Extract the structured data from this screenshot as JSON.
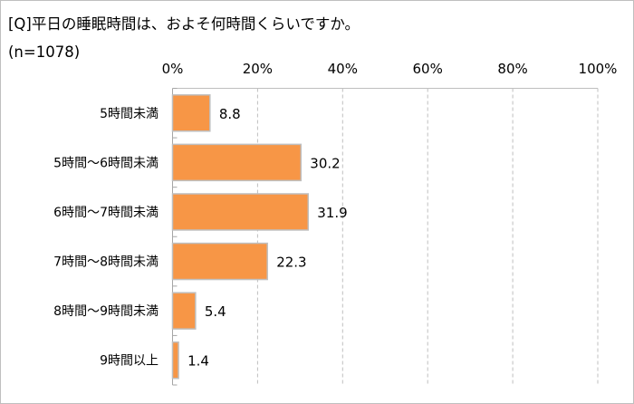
{
  "chart_data": {
    "type": "bar",
    "orientation": "horizontal",
    "title": "[Q]平日の睡眠時間は、およそ何時間くらいですか。",
    "subtitle": "(n=1078)",
    "categories": [
      "5時間未満",
      "5時間～6時間未満",
      "6時間～7時間未満",
      "7時間～8時間未満",
      "8時間～9時間未満",
      "9時間以上"
    ],
    "values": [
      8.8,
      30.2,
      31.9,
      22.3,
      5.4,
      1.4
    ],
    "value_labels": [
      "8.8",
      "30.2",
      "31.9",
      "22.3",
      "5.4",
      "1.4"
    ],
    "xlim": [
      0,
      100
    ],
    "xticks": [
      0,
      20,
      40,
      60,
      80,
      100
    ],
    "xtick_labels": [
      "0%",
      "20%",
      "40%",
      "60%",
      "80%",
      "100%"
    ],
    "xlabel": "",
    "ylabel": "",
    "grid": true,
    "bar_color": "#F79646",
    "bar_border": "#bfbfbf",
    "grid_color": "#bfbfbf"
  }
}
